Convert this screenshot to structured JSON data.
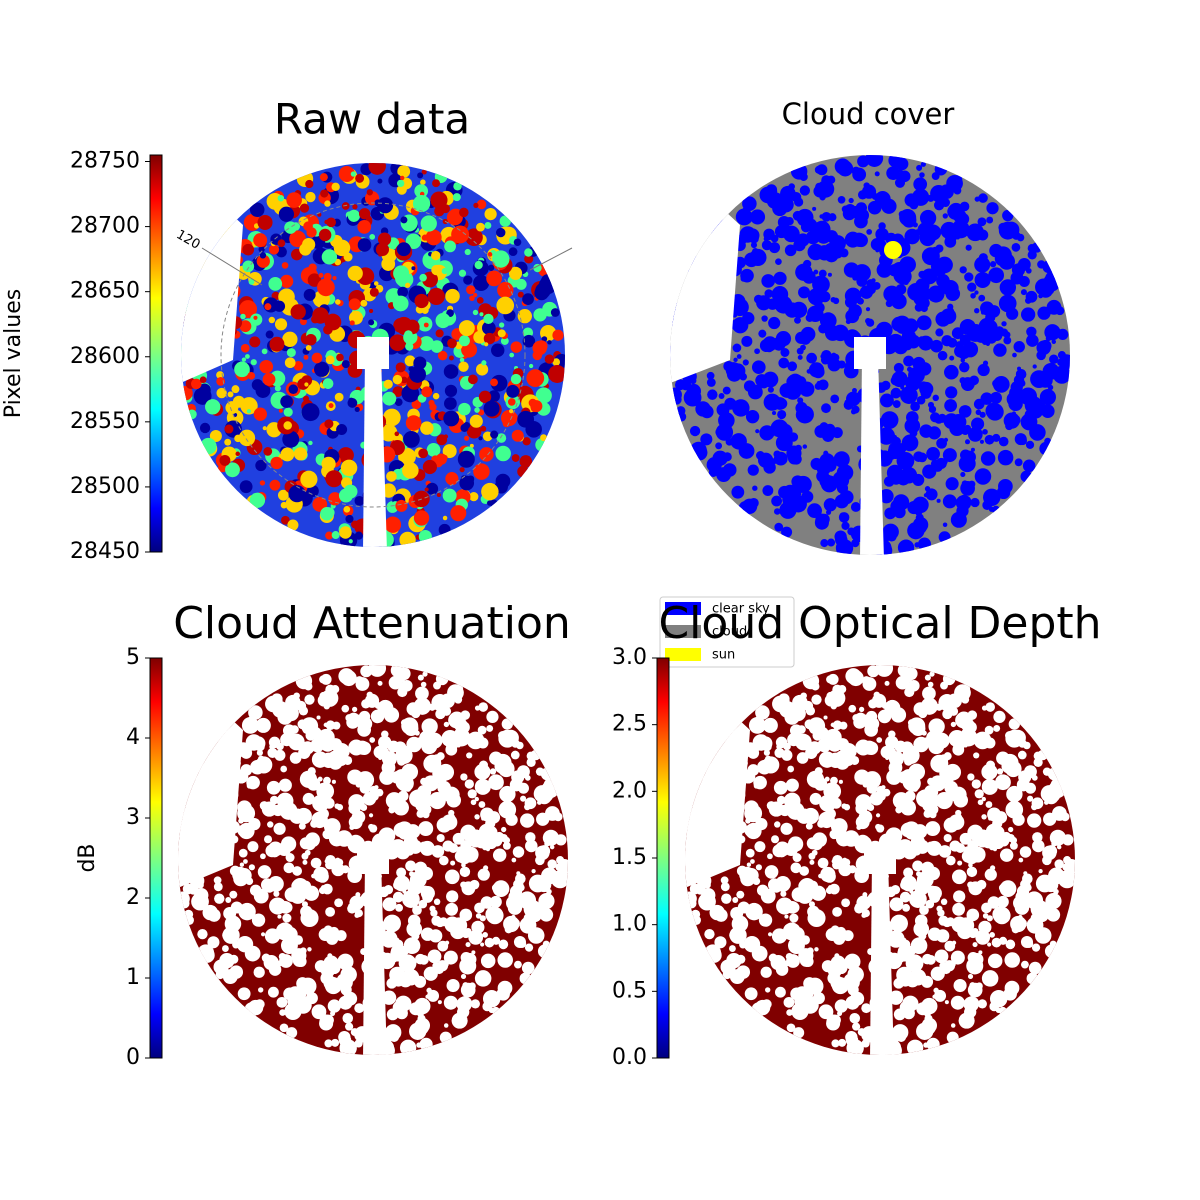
{
  "chart_data": [
    {
      "type": "image",
      "title": "Raw data",
      "annotation": "120",
      "colorbar": {
        "label": "Pixel values",
        "lim": [
          28450,
          28755
        ],
        "ticks": [
          28450,
          28500,
          28550,
          28600,
          28650,
          28700,
          28750
        ]
      }
    },
    {
      "type": "image",
      "title": "Cloud cover",
      "legend": [
        {
          "name": "clear sky",
          "color": "#0000ff"
        },
        {
          "name": "cloud",
          "color": "#808080"
        },
        {
          "name": "sun",
          "color": "#ffff00"
        }
      ]
    },
    {
      "type": "image",
      "title": "Cloud Attenuation",
      "colorbar": {
        "label": "dB",
        "lim": [
          0,
          5
        ],
        "ticks": [
          0,
          1,
          2,
          3,
          4,
          5
        ]
      }
    },
    {
      "type": "image",
      "title": "Cloud Optical Depth",
      "colorbar": {
        "lim": [
          0,
          3
        ],
        "ticks": [
          {
            "value": 0,
            "label": "0.0"
          },
          {
            "value": 0.5,
            "label": "0.5"
          },
          {
            "value": 1,
            "label": "1.0"
          },
          {
            "value": 1.5,
            "label": "1.5"
          },
          {
            "value": 2,
            "label": "2.0"
          },
          {
            "value": 2.5,
            "label": "2.5"
          },
          {
            "value": 3,
            "label": "3.0"
          }
        ]
      }
    }
  ]
}
